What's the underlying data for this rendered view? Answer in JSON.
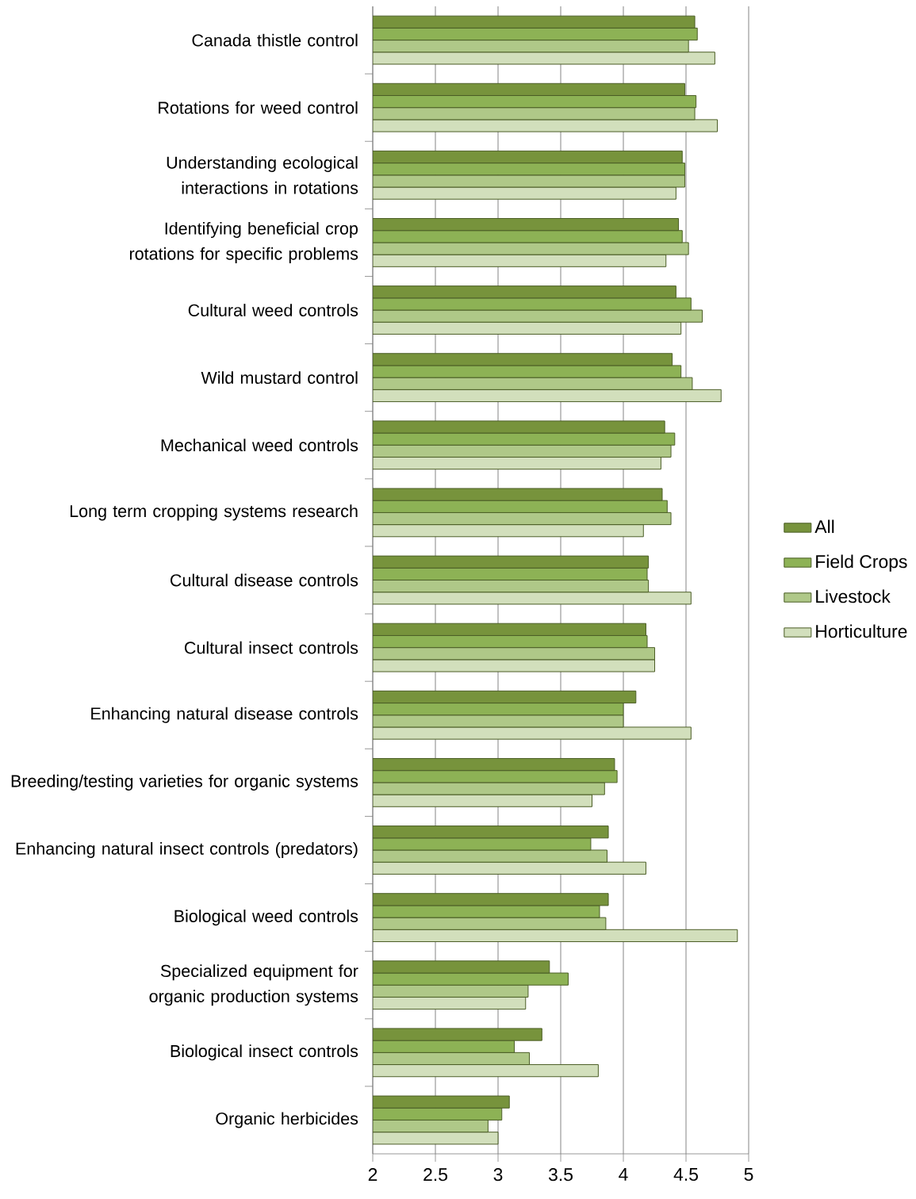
{
  "chart_data": {
    "type": "bar",
    "orientation": "horizontal",
    "categories": [
      "Canada thistle control",
      "Rotations for weed control",
      "Understanding ecological interactions in rotations",
      "Identifying beneficial crop rotations for specific problems",
      "Cultural weed controls",
      "Wild mustard control",
      "Mechanical weed controls",
      "Long term cropping systems research",
      "Cultural disease controls",
      "Cultural insect controls",
      "Enhancing natural disease controls",
      "Breeding/testing varieties for organic systems",
      "Enhancing natural insect controls (predators)",
      "Biological weed controls",
      "Specialized equipment for organic production systems",
      "Biological insect controls",
      "Organic herbicides"
    ],
    "series": [
      {
        "name": "All",
        "color": "#77933c",
        "values": [
          4.57,
          4.49,
          4.47,
          4.44,
          4.42,
          4.39,
          4.33,
          4.31,
          4.2,
          4.18,
          4.1,
          3.93,
          3.88,
          3.88,
          3.41,
          3.35,
          3.09
        ]
      },
      {
        "name": "Field Crops",
        "color": "#8db255",
        "values": [
          4.59,
          4.58,
          4.49,
          4.47,
          4.54,
          4.46,
          4.41,
          4.35,
          4.19,
          4.19,
          4.0,
          3.95,
          3.74,
          3.81,
          3.56,
          3.13,
          3.03
        ]
      },
      {
        "name": "Livestock",
        "color": "#afc888",
        "values": [
          4.52,
          4.57,
          4.49,
          4.52,
          4.63,
          4.55,
          4.38,
          4.38,
          4.2,
          4.25,
          4.0,
          3.85,
          3.87,
          3.86,
          3.24,
          3.25,
          2.92
        ]
      },
      {
        "name": "Horticulture",
        "color": "#d2dfbc",
        "values": [
          4.73,
          4.75,
          4.42,
          4.34,
          4.46,
          4.78,
          4.3,
          4.16,
          4.54,
          4.25,
          4.54,
          3.75,
          4.18,
          4.91,
          3.22,
          3.8,
          3.0
        ]
      }
    ],
    "xlim": [
      2,
      5
    ],
    "xticks": [
      2,
      2.5,
      3,
      3.5,
      4,
      4.5,
      5
    ],
    "grid": "x",
    "legend": "right"
  }
}
